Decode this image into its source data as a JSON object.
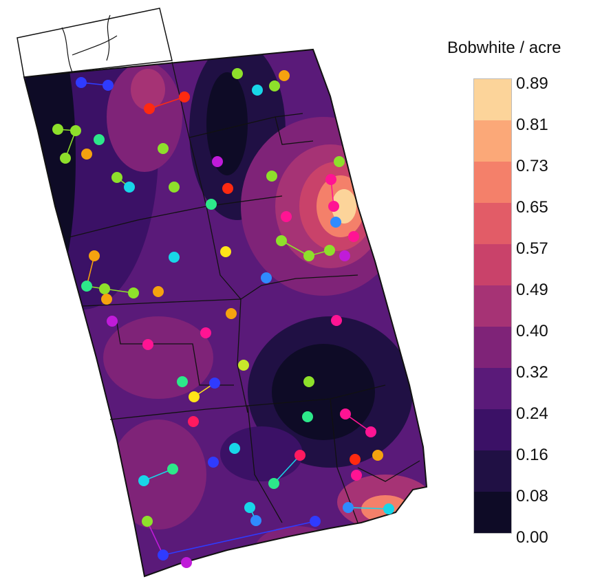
{
  "legend": {
    "title": "Bobwhite / acre",
    "breaks": [
      "0.89",
      "0.81",
      "0.73",
      "0.65",
      "0.57",
      "0.49",
      "0.40",
      "0.32",
      "0.24",
      "0.16",
      "0.08",
      "0.00"
    ],
    "colors": [
      "#fcd49a",
      "#fba878",
      "#f4806a",
      "#e25c67",
      "#c9426a",
      "#a63375",
      "#7f2378",
      "#5a1a79",
      "#3b1166",
      "#201044",
      "#0e0b26",
      "#000000"
    ]
  },
  "map_colors": {
    "outline": "#111111",
    "connector": "#22aa44",
    "marker_palette": [
      "#8ee02b",
      "#18d6e8",
      "#ff1a5f",
      "#f5a20f",
      "#ff1493",
      "#2f3bff",
      "#c01bd9",
      "#ffe419",
      "#ff2a10",
      "#2de88a"
    ]
  }
}
